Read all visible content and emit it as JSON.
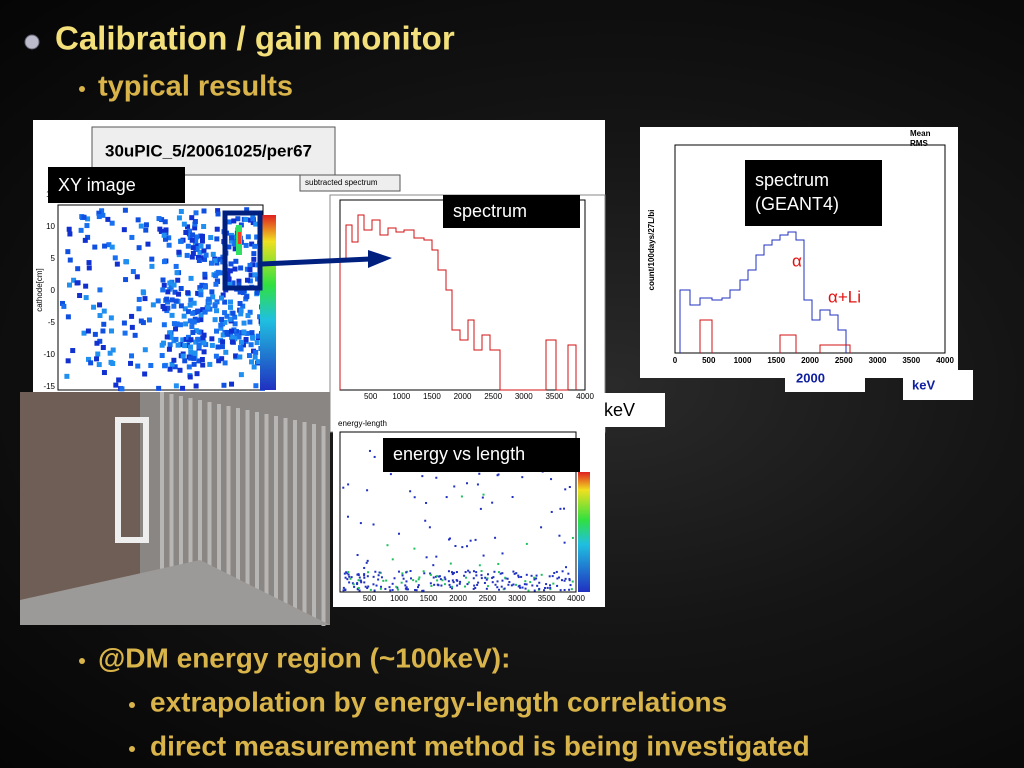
{
  "title": "Calibration / gain monitor",
  "subtitle": "typical results",
  "figures": {
    "xy_image": {
      "run": "30uPIC_5/20061025/per67",
      "label": "XY image",
      "ylabel": "cathode[cm]",
      "yticks": [
        "15",
        "10",
        "5",
        "0",
        "-5",
        "-10",
        "-15"
      ],
      "stats_title": "subtracted spectrum"
    },
    "spectrum": {
      "label": "spectrum",
      "unit": "keV",
      "xticks": [
        "500",
        "1000",
        "1500",
        "2000",
        "2500",
        "3000",
        "3500",
        "4000"
      ]
    },
    "energy_length": {
      "label": "energy  vs  length",
      "title": "energy-length",
      "xticks": [
        "500",
        "1000",
        "1500",
        "2000",
        "2500",
        "3000",
        "3500",
        "4000"
      ]
    },
    "geant4": {
      "label": "spectrum\n(GEANT4)",
      "ylabel": "count/100days/27L/bi",
      "stats": [
        "Mean",
        "RMS"
      ],
      "alpha": "α",
      "alpha_li": "α+Li",
      "xticks": [
        "0",
        "500",
        "1000",
        "1500",
        "2000",
        "2500",
        "3000",
        "3500",
        "4000"
      ],
      "mark": "2000",
      "unit": "keV"
    }
  },
  "notes": {
    "heading": "@DM energy region (~100keV):",
    "items": [
      "extrapolation by energy-length correlations",
      "direct measurement method is being investigated"
    ]
  }
}
